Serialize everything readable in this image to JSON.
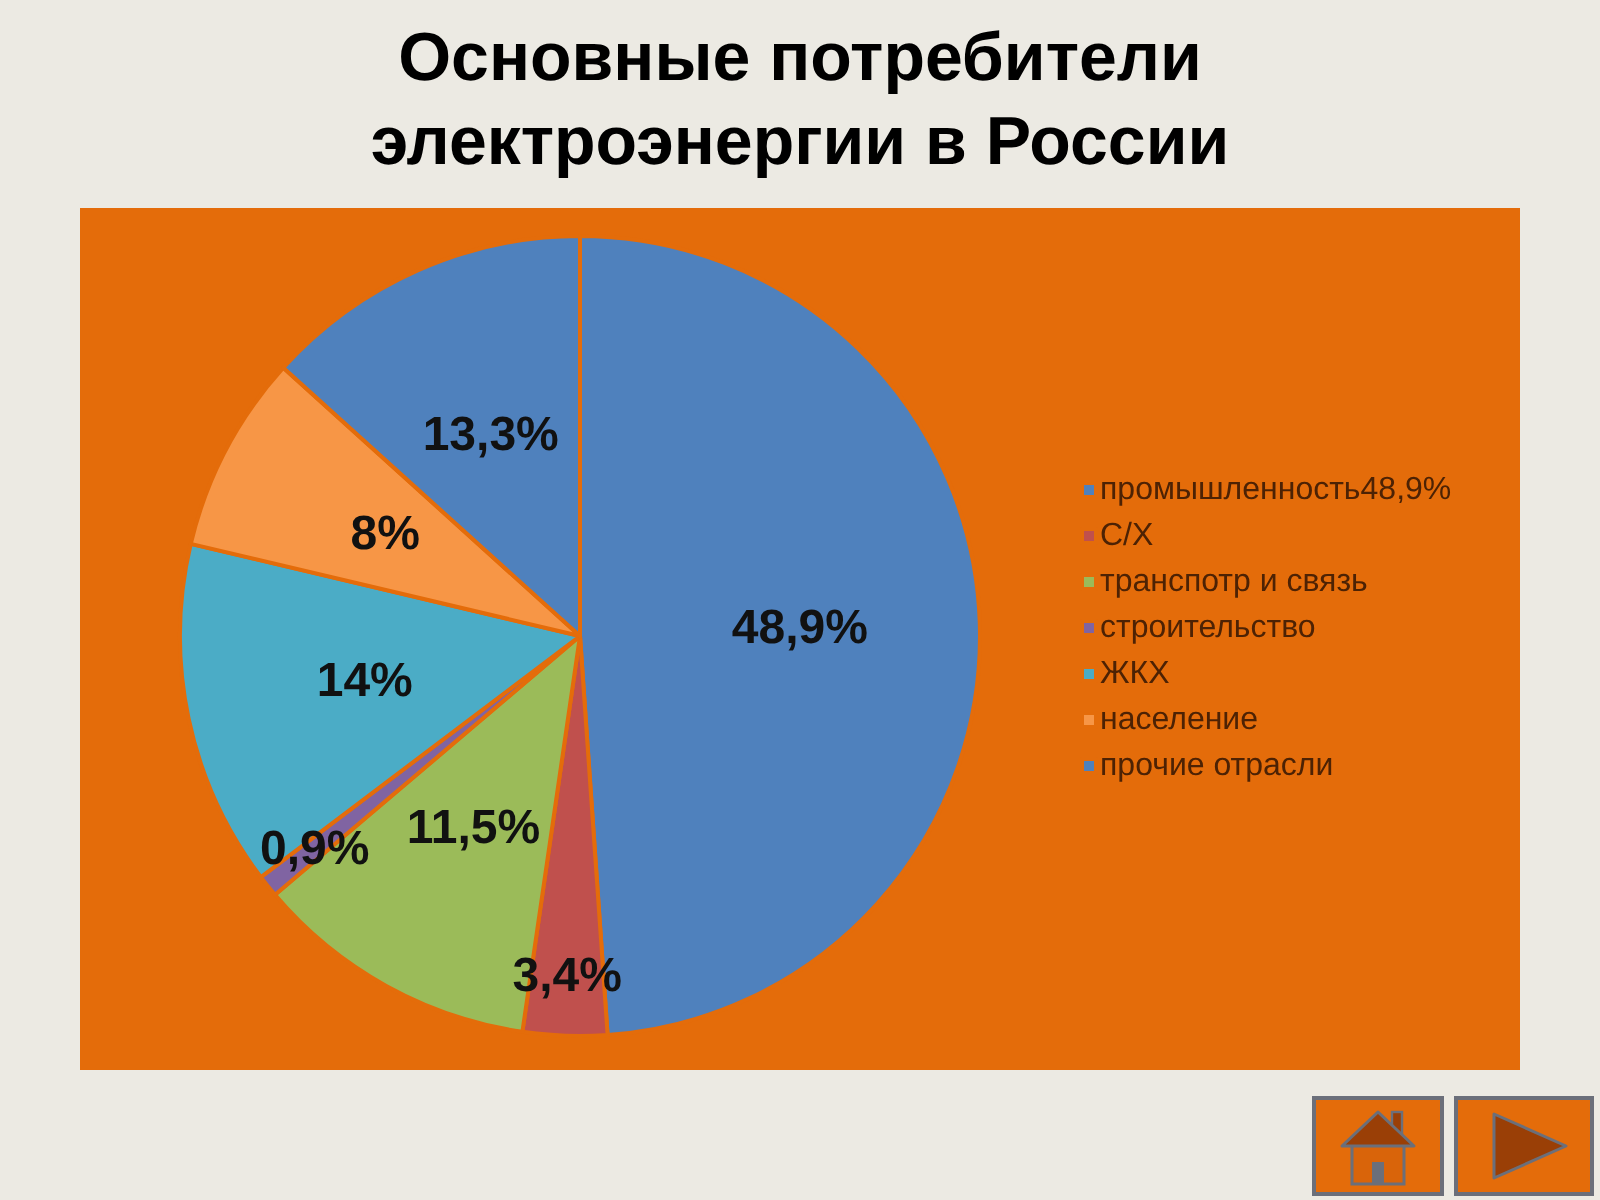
{
  "chart_data": {
    "type": "pie",
    "title": "Основные потребители электроэнергии в России",
    "categories": [
      "промышленность48,9%",
      "С/Х",
      "транспотр и связь",
      "строительство",
      "ЖКХ",
      "население",
      "прочие отрасли"
    ],
    "values": [
      48.9,
      3.4,
      11.5,
      0.9,
      14,
      8,
      13.3
    ],
    "colors": [
      "#4f81bd",
      "#c0504d",
      "#9bbb59",
      "#8064a2",
      "#4bacc6",
      "#f79646",
      "#4f81bd"
    ],
    "value_labels": [
      "48,9%",
      "3,4%",
      "11,5%",
      "0,9%",
      "14%",
      "8%",
      "13,3%"
    ],
    "legend": "right"
  }
}
